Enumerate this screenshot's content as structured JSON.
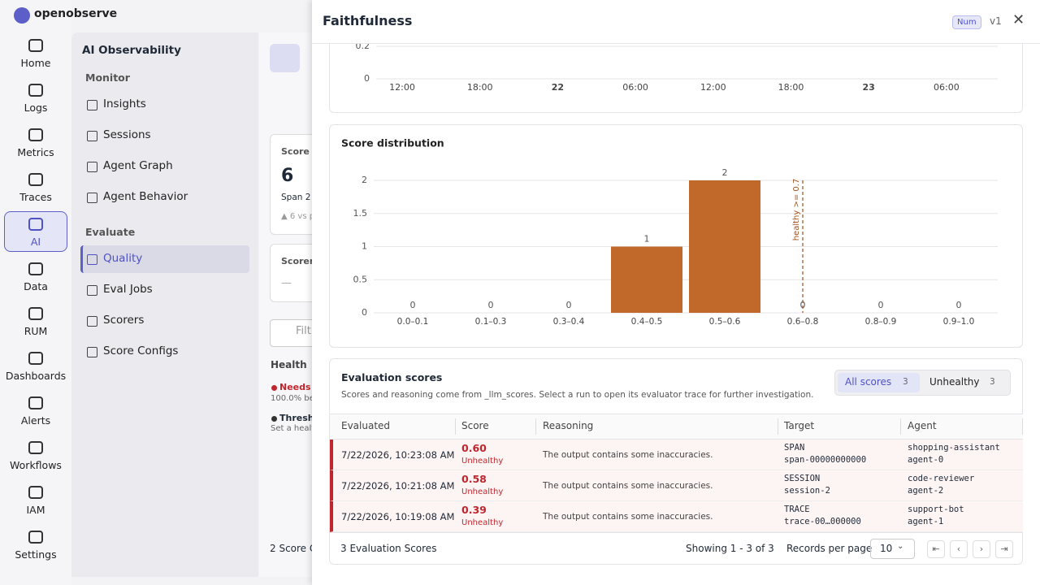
{
  "app": {
    "logo": "openobserve"
  },
  "nav": [
    "Home",
    "Logs",
    "Metrics",
    "Traces",
    "AI",
    "Data",
    "RUM",
    "Dashboards",
    "Alerts",
    "Workflows",
    "IAM",
    "Settings"
  ],
  "sidebar": {
    "title": "AI Observability",
    "sections": [
      {
        "title": "Monitor",
        "items": [
          "Insights",
          "Sessions",
          "Agent Graph",
          "Agent Behavior"
        ]
      },
      {
        "title": "Evaluate",
        "items": [
          "Quality",
          "Eval Jobs",
          "Scorers",
          "Score Configs"
        ]
      }
    ]
  },
  "background": {
    "card_title": "Score P",
    "card_value": "6",
    "card_sub": "Span 2",
    "card_delta": "▲ 6 vs p",
    "scorer_label": "Scorer",
    "scorer_value": "—",
    "filter_placeholder": "Filt",
    "column": "Health",
    "row1_status": "Needs a",
    "row1_detail": "100.0% bel",
    "row2_status": "Thresho",
    "row2_detail": "Set a healt",
    "footer": "2 Score C"
  },
  "drawer": {
    "title": "Faithfulness",
    "badge": "Num",
    "version": "v1"
  },
  "chart_data": [
    {
      "type": "line",
      "categories": [
        "12:00",
        "18:00",
        "22",
        "06:00",
        "12:00",
        "18:00",
        "23",
        "06:00"
      ],
      "ylim": [
        0,
        0.2
      ],
      "yticks": [
        0,
        0.2
      ],
      "grid": true
    },
    {
      "type": "bar",
      "title": "Score distribution",
      "categories": [
        "0.0–0.1",
        "0.1–0.3",
        "0.3–0.4",
        "0.4–0.5",
        "0.5–0.6",
        "0.6–0.8",
        "0.8–0.9",
        "0.9–1.0"
      ],
      "values": [
        0,
        0,
        0,
        1,
        2,
        0,
        0,
        0
      ],
      "color": "#c0692a",
      "ylim": [
        0,
        2
      ],
      "yticks": [
        0,
        0.5,
        1,
        1.5,
        2
      ],
      "grid": true,
      "annotation": {
        "text": "healthy >= 0.7",
        "category": "0.6–0.8"
      }
    }
  ],
  "evaluation_scores": {
    "title": "Evaluation scores",
    "description": "Scores and reasoning come from _llm_scores. Select a run to open its evaluator trace for further investigation.",
    "tabs": [
      {
        "label": "All scores",
        "count": 3
      },
      {
        "label": "Unhealthy",
        "count": 3
      }
    ],
    "columns": [
      "Evaluated",
      "Score",
      "Reasoning",
      "Target",
      "Agent"
    ],
    "rows": [
      {
        "evaluated": "7/22/2026, 10:23:08 AM",
        "score": "0.60",
        "status": "Unhealthy",
        "reasoning": "The output contains some inaccuracies.",
        "target_type": "SPAN",
        "target_id": "span-00000000000",
        "agent": "shopping-assistant",
        "agent_id": "agent-0"
      },
      {
        "evaluated": "7/22/2026, 10:21:08 AM",
        "score": "0.58",
        "status": "Unhealthy",
        "reasoning": "The output contains some inaccuracies.",
        "target_type": "SESSION",
        "target_id": "session-2",
        "agent": "code-reviewer",
        "agent_id": "agent-2"
      },
      {
        "evaluated": "7/22/2026, 10:19:08 AM",
        "score": "0.39",
        "status": "Unhealthy",
        "reasoning": "The output contains some inaccuracies.",
        "target_type": "TRACE",
        "target_id": "trace-00…000000",
        "agent": "support-bot",
        "agent_id": "agent-1"
      }
    ],
    "footer": {
      "total": "3 Evaluation Scores",
      "showing": "Showing 1 - 3 of 3",
      "per_page_label": "Records per page",
      "per_page": 10
    }
  }
}
